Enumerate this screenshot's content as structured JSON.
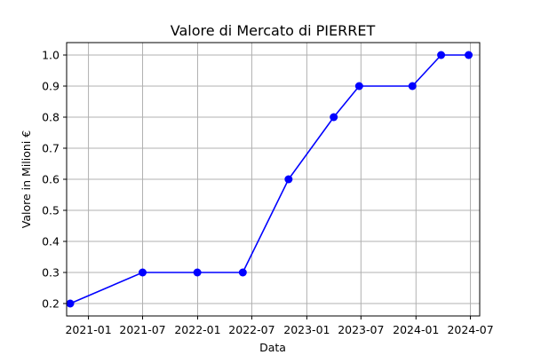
{
  "chart_data": {
    "type": "line",
    "title": "Valore di Mercato di PIERRET",
    "xlabel": "Data",
    "ylabel": "Valore in Milioni €",
    "grid": true,
    "x_ticks": [
      "2021-01",
      "2021-07",
      "2022-01",
      "2022-07",
      "2023-01",
      "2023-07",
      "2024-01",
      "2024-07"
    ],
    "y_ticks": [
      "0.2",
      "0.3",
      "0.4",
      "0.5",
      "0.6",
      "0.7",
      "0.8",
      "0.9",
      "1.0"
    ],
    "ylim": [
      0.16,
      1.04
    ],
    "xlim": [
      "2020-10-20",
      "2024-08-01"
    ],
    "series": [
      {
        "color": "#0000ff",
        "marker": "circle",
        "x": [
          "2020-11-01",
          "2021-07-01",
          "2021-12-31",
          "2022-06-01",
          "2022-11-01",
          "2023-04-01",
          "2023-06-25",
          "2023-12-20",
          "2024-03-25",
          "2024-06-25"
        ],
        "values": [
          0.2,
          0.3,
          0.3,
          0.3,
          0.6,
          0.8,
          0.9,
          0.9,
          1.0,
          1.0
        ]
      }
    ]
  }
}
